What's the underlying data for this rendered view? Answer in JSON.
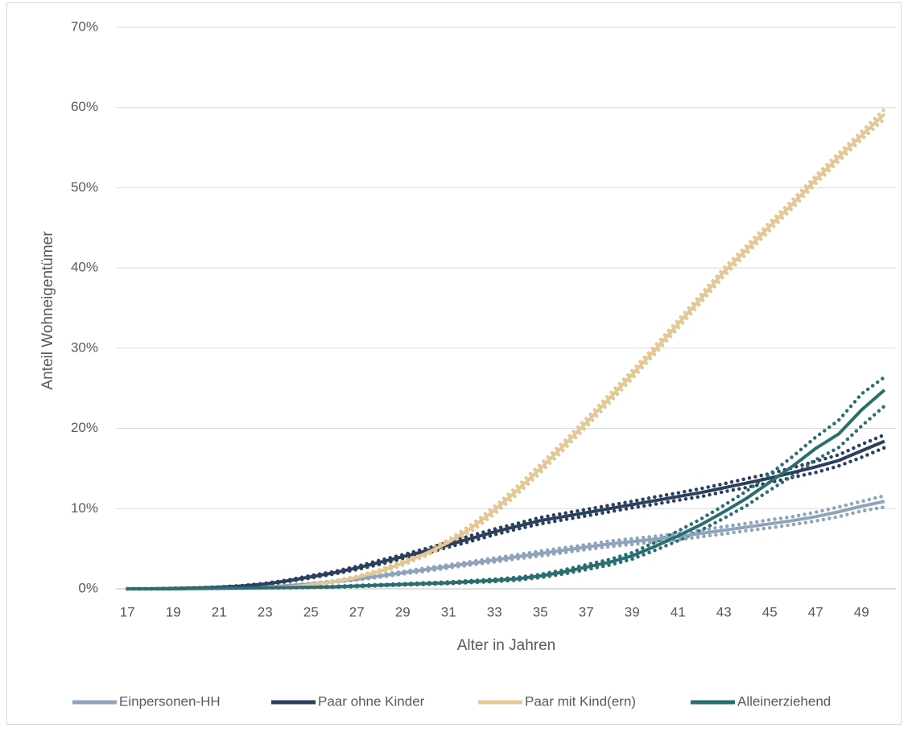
{
  "chart_data": {
    "type": "line",
    "x_label": "Alter in Jahren",
    "y_label": "Anteil Wohneigentümer",
    "categories": [
      17,
      null,
      19,
      null,
      21,
      null,
      23,
      null,
      25,
      null,
      27,
      null,
      29,
      null,
      31,
      null,
      33,
      null,
      35,
      null,
      37,
      null,
      39,
      null,
      41,
      null,
      43,
      null,
      45,
      null,
      47,
      null,
      49,
      null
    ],
    "ylim": [
      0,
      70
    ],
    "yticks": [
      {
        "value": 0,
        "label": "0%"
      },
      {
        "value": 10,
        "label": "10%"
      },
      {
        "value": 20,
        "label": "20%"
      },
      {
        "value": 30,
        "label": "30%"
      },
      {
        "value": 40,
        "label": "40%"
      },
      {
        "value": 50,
        "label": "50%"
      },
      {
        "value": 60,
        "label": "60%"
      },
      {
        "value": 70,
        "label": "70%"
      }
    ],
    "grid": true,
    "legend": "bottom",
    "series": [
      {
        "name": "Einpersonen-HH",
        "color": "#8fa3bb",
        "values": [
          0,
          0,
          0,
          0.05,
          0.08,
          0.12,
          0.2,
          0.4,
          0.6,
          0.9,
          1.2,
          1.6,
          2,
          2.4,
          2.8,
          3.2,
          3.6,
          4,
          4.4,
          4.8,
          5.2,
          5.6,
          5.9,
          6.2,
          6.5,
          6.9,
          7.3,
          7.7,
          8.1,
          8.5,
          9,
          9.6,
          10.3,
          10.9
        ],
        "lower": [
          0,
          0,
          0,
          0.04,
          0.06,
          0.1,
          0.17,
          0.35,
          0.53,
          0.8,
          1.1,
          1.45,
          1.85,
          2.2,
          2.6,
          3,
          3.35,
          3.75,
          4.1,
          4.5,
          4.9,
          5.25,
          5.55,
          5.85,
          6.1,
          6.5,
          6.85,
          7.25,
          7.6,
          8,
          8.45,
          9,
          9.7,
          10.2
        ],
        "upper": [
          0,
          0,
          0,
          0.06,
          0.1,
          0.14,
          0.23,
          0.45,
          0.67,
          1,
          1.3,
          1.75,
          2.15,
          2.6,
          3,
          3.4,
          3.85,
          4.25,
          4.7,
          5.1,
          5.5,
          5.95,
          6.25,
          6.55,
          6.9,
          7.3,
          7.75,
          8.15,
          8.6,
          9,
          9.55,
          10.2,
          10.9,
          11.6
        ]
      },
      {
        "name": "Paar ohne Kinder",
        "color": "#2b3f5e",
        "values": [
          0,
          0,
          0.05,
          0.1,
          0.2,
          0.35,
          0.6,
          1,
          1.5,
          2,
          2.6,
          3.3,
          4,
          4.7,
          5.5,
          6.3,
          7.1,
          7.8,
          8.5,
          9,
          9.5,
          10,
          10.5,
          11,
          11.5,
          12,
          12.6,
          13.2,
          13.8,
          14.5,
          15.2,
          16,
          17.2,
          18.4
        ],
        "lower": [
          0,
          0,
          0.04,
          0.08,
          0.17,
          0.3,
          0.52,
          0.9,
          1.35,
          1.85,
          2.4,
          3.05,
          3.75,
          4.4,
          5.2,
          5.95,
          6.75,
          7.45,
          8.1,
          8.6,
          9.1,
          9.6,
          10.1,
          10.55,
          11.05,
          11.5,
          12.1,
          12.65,
          13.25,
          13.9,
          14.5,
          15.3,
          16.4,
          17.6
        ],
        "upper": [
          0,
          0,
          0.06,
          0.12,
          0.23,
          0.4,
          0.68,
          1.1,
          1.65,
          2.15,
          2.8,
          3.55,
          4.25,
          5,
          5.8,
          6.65,
          7.45,
          8.15,
          8.9,
          9.4,
          9.9,
          10.4,
          10.9,
          11.45,
          11.95,
          12.5,
          13.1,
          13.75,
          14.35,
          15.1,
          15.9,
          16.7,
          18,
          19.2
        ]
      },
      {
        "name": "Paar mit Kind(ern)",
        "color": "#e3c896",
        "values": [
          0,
          0,
          0,
          0,
          0.02,
          0.05,
          0.1,
          0.2,
          0.5,
          0.9,
          1.4,
          2.2,
          3.2,
          4.4,
          5.8,
          7.6,
          9.8,
          12.3,
          15,
          17.8,
          20.7,
          23.7,
          26.7,
          29.8,
          33,
          36.2,
          39.5,
          42.3,
          45.2,
          48,
          51,
          53.8,
          56.5,
          59.2
        ],
        "lower": [
          0,
          0,
          0,
          0,
          0.01,
          0.04,
          0.08,
          0.17,
          0.44,
          0.8,
          1.25,
          2,
          2.95,
          4.1,
          5.45,
          7.2,
          9.35,
          11.8,
          14.5,
          17.3,
          20.2,
          23.2,
          26.2,
          29.3,
          32.5,
          35.7,
          39,
          41.8,
          44.7,
          47.5,
          50.5,
          53.3,
          56,
          58.6
        ],
        "upper": [
          0,
          0,
          0,
          0,
          0.03,
          0.06,
          0.12,
          0.23,
          0.56,
          1,
          1.55,
          2.4,
          3.45,
          4.7,
          6.15,
          8,
          10.25,
          12.8,
          15.5,
          18.3,
          21.2,
          24.2,
          27.2,
          30.3,
          33.5,
          36.7,
          40,
          42.8,
          45.7,
          48.5,
          51.5,
          54.3,
          57,
          59.8
        ]
      },
      {
        "name": "Alleinerziehend",
        "color": "#2b6e72",
        "values": [
          0,
          0,
          0,
          0.05,
          0.08,
          0.1,
          0.12,
          0.15,
          0.2,
          0.25,
          0.35,
          0.45,
          0.55,
          0.65,
          0.75,
          0.9,
          1.05,
          1.25,
          1.6,
          2.1,
          2.7,
          3.3,
          4.1,
          5.3,
          6.6,
          8,
          9.6,
          11.3,
          13.3,
          15.3,
          17.5,
          19.3,
          22.3,
          24.8
        ],
        "lower": [
          0,
          0,
          0,
          0.04,
          0.06,
          0.08,
          0.1,
          0.12,
          0.16,
          0.2,
          0.28,
          0.38,
          0.47,
          0.55,
          0.65,
          0.78,
          0.9,
          1.08,
          1.4,
          1.85,
          2.4,
          2.95,
          3.7,
          4.8,
          6,
          7.3,
          8.8,
          10.4,
          12.3,
          14.1,
          16.1,
          17.6,
          20.3,
          22.8
        ],
        "upper": [
          0,
          0,
          0,
          0.06,
          0.1,
          0.12,
          0.14,
          0.18,
          0.24,
          0.3,
          0.42,
          0.52,
          0.63,
          0.75,
          0.85,
          1.02,
          1.2,
          1.42,
          1.8,
          2.35,
          3,
          3.65,
          4.5,
          5.8,
          7.2,
          8.7,
          10.4,
          12.2,
          14.3,
          16.5,
          18.9,
          21,
          24.3,
          26.4
        ]
      }
    ]
  }
}
